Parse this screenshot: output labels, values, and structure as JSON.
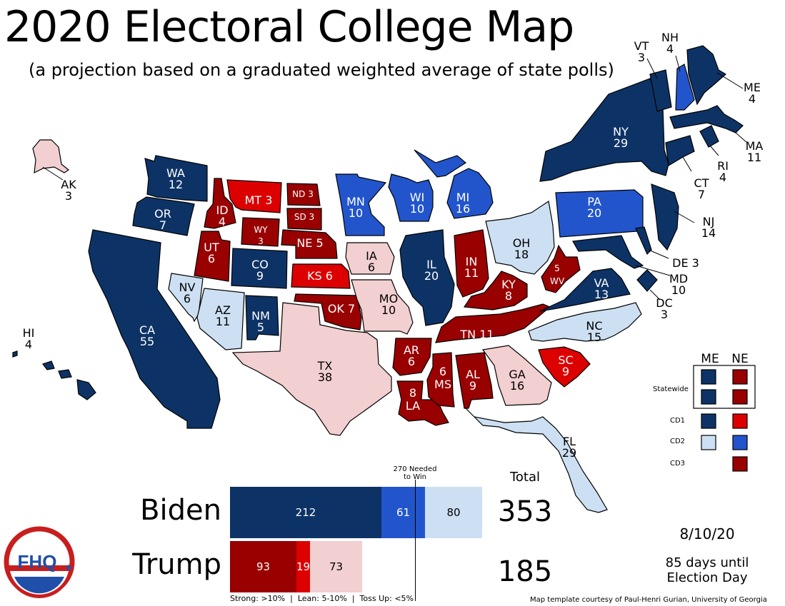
{
  "title": "2020 Electoral College Map",
  "subtitle": "(a projection based on a graduated weighted average of state polls)",
  "colors": {
    "strong_dem": "#0d3366",
    "lean_dem": "#2255cc",
    "tossup_dem": "#cde0f3",
    "tossup_rep": "#f2cfd0",
    "lean_rep": "#dd0000",
    "strong_rep": "#990000"
  },
  "states": {
    "WA": {
      "abbr": "WA",
      "ev": "12",
      "cat": "strong_dem"
    },
    "OR": {
      "abbr": "OR",
      "ev": "7",
      "cat": "strong_dem"
    },
    "CA": {
      "abbr": "CA",
      "ev": "55",
      "cat": "strong_dem"
    },
    "NV": {
      "abbr": "NV",
      "ev": "6",
      "cat": "tossup_dem"
    },
    "ID": {
      "abbr": "ID",
      "ev": "4",
      "cat": "strong_rep"
    },
    "MT": {
      "abbr": "MT",
      "ev": "3",
      "cat": "lean_rep"
    },
    "WY": {
      "abbr": "WY",
      "ev": "3",
      "cat": "strong_rep"
    },
    "UT": {
      "abbr": "UT",
      "ev": "6",
      "cat": "strong_rep"
    },
    "AZ": {
      "abbr": "AZ",
      "ev": "11",
      "cat": "tossup_dem"
    },
    "CO": {
      "abbr": "CO",
      "ev": "9",
      "cat": "strong_dem"
    },
    "NM": {
      "abbr": "NM",
      "ev": "5",
      "cat": "strong_dem"
    },
    "ND": {
      "abbr": "ND",
      "ev": "3",
      "cat": "strong_rep"
    },
    "SD": {
      "abbr": "SD",
      "ev": "3",
      "cat": "strong_rep"
    },
    "NE": {
      "abbr": "NE",
      "ev": "5",
      "cat": "strong_rep"
    },
    "KS": {
      "abbr": "KS",
      "ev": "6",
      "cat": "lean_rep"
    },
    "OK": {
      "abbr": "OK",
      "ev": "7",
      "cat": "strong_rep"
    },
    "TX": {
      "abbr": "TX",
      "ev": "38",
      "cat": "tossup_rep"
    },
    "MN": {
      "abbr": "MN",
      "ev": "10",
      "cat": "lean_dem"
    },
    "IA": {
      "abbr": "IA",
      "ev": "6",
      "cat": "tossup_rep"
    },
    "MO": {
      "abbr": "MO",
      "ev": "10",
      "cat": "tossup_rep"
    },
    "AR": {
      "abbr": "AR",
      "ev": "6",
      "cat": "strong_rep"
    },
    "LA": {
      "abbr": "LA",
      "ev": "8",
      "cat": "strong_rep"
    },
    "WI": {
      "abbr": "WI",
      "ev": "10",
      "cat": "lean_dem"
    },
    "IL": {
      "abbr": "IL",
      "ev": "20",
      "cat": "strong_dem"
    },
    "MI": {
      "abbr": "MI",
      "ev": "16",
      "cat": "lean_dem"
    },
    "IN": {
      "abbr": "IN",
      "ev": "11",
      "cat": "strong_rep"
    },
    "OH": {
      "abbr": "OH",
      "ev": "18",
      "cat": "tossup_dem"
    },
    "KY": {
      "abbr": "KY",
      "ev": "8",
      "cat": "strong_rep"
    },
    "TN": {
      "abbr": "TN",
      "ev": "11",
      "cat": "strong_rep"
    },
    "MS": {
      "abbr": "MS",
      "ev": "6",
      "cat": "strong_rep"
    },
    "AL": {
      "abbr": "AL",
      "ev": "9",
      "cat": "strong_rep"
    },
    "GA": {
      "abbr": "GA",
      "ev": "16",
      "cat": "tossup_rep"
    },
    "FL": {
      "abbr": "FL",
      "ev": "29",
      "cat": "tossup_dem"
    },
    "SC": {
      "abbr": "SC",
      "ev": "9",
      "cat": "lean_rep"
    },
    "NC": {
      "abbr": "NC",
      "ev": "15",
      "cat": "tossup_dem"
    },
    "VA": {
      "abbr": "VA",
      "ev": "13",
      "cat": "strong_dem"
    },
    "WV": {
      "abbr": "WV",
      "ev": "5",
      "cat": "strong_rep"
    },
    "PA": {
      "abbr": "PA",
      "ev": "20",
      "cat": "lean_dem"
    },
    "NY": {
      "abbr": "NY",
      "ev": "29",
      "cat": "strong_dem"
    },
    "NJ": {
      "abbr": "NJ",
      "ev": "14",
      "cat": "strong_dem"
    },
    "DE": {
      "abbr": "DE",
      "ev": "3",
      "cat": "strong_dem"
    },
    "MD": {
      "abbr": "MD",
      "ev": "10",
      "cat": "strong_dem"
    },
    "DC": {
      "abbr": "DC",
      "ev": "3",
      "cat": "strong_dem"
    },
    "CT": {
      "abbr": "CT",
      "ev": "7",
      "cat": "strong_dem"
    },
    "RI": {
      "abbr": "RI",
      "ev": "4",
      "cat": "strong_dem"
    },
    "MA": {
      "abbr": "MA",
      "ev": "11",
      "cat": "strong_dem"
    },
    "VT": {
      "abbr": "VT",
      "ev": "3",
      "cat": "strong_dem"
    },
    "NH": {
      "abbr": "NH",
      "ev": "4",
      "cat": "lean_dem"
    },
    "ME": {
      "abbr": "ME",
      "ev": "4",
      "cat": "strong_dem"
    },
    "AK": {
      "abbr": "AK",
      "ev": "3",
      "cat": "tossup_rep"
    },
    "HI": {
      "abbr": "HI",
      "ev": "4",
      "cat": "strong_dem"
    }
  },
  "legend": {
    "col_me": "ME",
    "col_ne": "NE",
    "row_statewide": "Statewide",
    "row_cd1": "CD1",
    "row_cd2": "CD2",
    "row_cd3": "CD3",
    "me_statewide": "strong_dem",
    "me_cd1": "strong_dem",
    "me_cd2": "tossup_dem",
    "ne_statewide": "strong_rep",
    "ne_cd1": "lean_rep",
    "ne_cd2": "lean_dem",
    "ne_cd3": "strong_rep"
  },
  "tally": {
    "needed_label": "270 Needed\nto Win",
    "needed": 270,
    "total_header": "Total",
    "biden": {
      "name": "Biden",
      "strong": 212,
      "lean": 61,
      "tossup": 80,
      "total": "353"
    },
    "trump": {
      "name": "Trump",
      "strong": 93,
      "lean": 19,
      "tossup": 73,
      "total": "185"
    },
    "key": "Strong: >10%  |  Lean: 5-10%  |  Toss Up: <5%"
  },
  "date": "8/10/20",
  "countdown": "85 days until\nElection Day",
  "logo_text": "FHQ",
  "credit": "Map template courtesy of Paul-Henri Gurian, University of Georgia"
}
